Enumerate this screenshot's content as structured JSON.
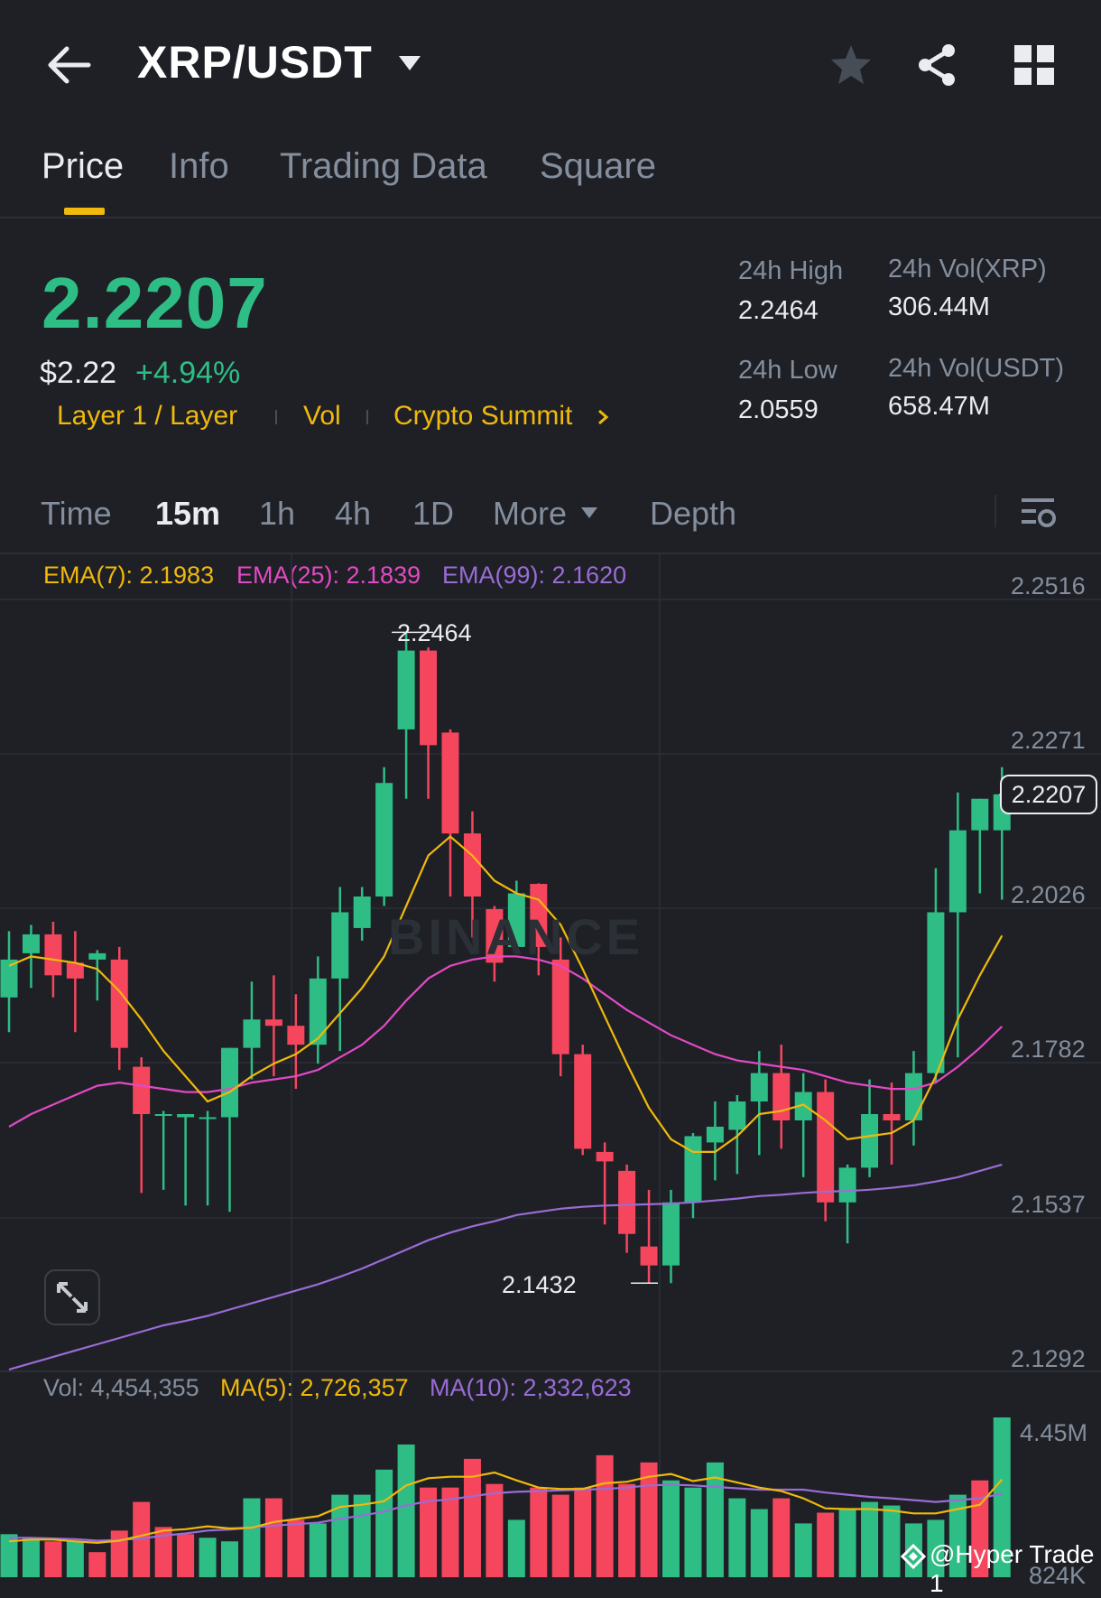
{
  "header": {
    "pair": "XRP/USDT",
    "icons": [
      "back-arrow-icon",
      "dropdown-caret-icon",
      "star-icon",
      "share-icon",
      "grid-icon"
    ]
  },
  "tabs": [
    {
      "label": "Price",
      "active": true
    },
    {
      "label": "Info"
    },
    {
      "label": "Trading Data"
    },
    {
      "label": "Square"
    }
  ],
  "ticker": {
    "last_price": "2.2207",
    "usd_price": "$2.22",
    "change": "+4.94%",
    "tags": {
      "t1": "Layer 1 / Layer",
      "t2": "Vol",
      "t3": "Crypto Summit"
    },
    "stats": {
      "high_label": "24h High",
      "high_value": "2.2464",
      "low_label": "24h Low",
      "low_value": "2.0559",
      "vol_xrp_label": "24h Vol(XRP)",
      "vol_xrp_value": "306.44M",
      "vol_usdt_label": "24h Vol(USDT)",
      "vol_usdt_value": "658.47M"
    }
  },
  "timeframes": {
    "time": "Time",
    "m15": "15m",
    "h1": "1h",
    "h4": "4h",
    "d1": "1D",
    "more": "More",
    "depth": "Depth",
    "active": "15m"
  },
  "indicators": {
    "ema7": "EMA(7): 2.1983",
    "ema25": "EMA(25): 2.1839",
    "ema99": "EMA(99): 2.1620",
    "vol": "Vol: 4,454,355",
    "ma5": "MA(5): 2,726,357",
    "ma10": "MA(10): 2,332,623"
  },
  "price_axis": {
    "p1": "2.2516",
    "p2": "2.2271",
    "p3": "2.2026",
    "p4": "2.1782",
    "p5": "2.1537",
    "p6": "2.1292",
    "current": "2.2207"
  },
  "vol_axis": {
    "top": "4.45M",
    "partial": "824K"
  },
  "markers": {
    "high": "2.2464",
    "low": "2.1432"
  },
  "watermark": "BINANCE",
  "credit": "@Hyper Trade 1",
  "colors": {
    "up": "#2ebd85",
    "down": "#f6465d",
    "ema7": "#f0b90b",
    "ema25": "#e349c4",
    "ema99": "#9a6cd6",
    "accent": "#f0b90b"
  },
  "chart_data": {
    "type": "candlestick",
    "interval": "15m",
    "ylim": [
      2.1292,
      2.2516
    ],
    "candles": [
      {
        "o": 2.1885,
        "h": 2.199,
        "l": 2.183,
        "c": 2.1945
      },
      {
        "o": 2.1955,
        "h": 2.2,
        "l": 2.19,
        "c": 2.1985
      },
      {
        "o": 2.1985,
        "h": 2.2005,
        "l": 2.1885,
        "c": 2.192
      },
      {
        "o": 2.194,
        "h": 2.199,
        "l": 2.183,
        "c": 2.1915
      },
      {
        "o": 2.1945,
        "h": 2.196,
        "l": 2.188,
        "c": 2.1955
      },
      {
        "o": 2.1945,
        "h": 2.1965,
        "l": 2.177,
        "c": 2.1805
      },
      {
        "o": 2.1775,
        "h": 2.179,
        "l": 2.1575,
        "c": 2.17
      },
      {
        "o": 2.17,
        "h": 2.1705,
        "l": 2.158,
        "c": 2.17
      },
      {
        "o": 2.1695,
        "h": 2.17,
        "l": 2.1555,
        "c": 2.17
      },
      {
        "o": 2.1695,
        "h": 2.1705,
        "l": 2.1555,
        "c": 2.1695
      },
      {
        "o": 2.1695,
        "h": 2.1805,
        "l": 2.1545,
        "c": 2.1805
      },
      {
        "o": 2.1805,
        "h": 2.191,
        "l": 2.1755,
        "c": 2.185
      },
      {
        "o": 2.185,
        "h": 2.192,
        "l": 2.176,
        "c": 2.184
      },
      {
        "o": 2.184,
        "h": 2.189,
        "l": 2.174,
        "c": 2.181
      },
      {
        "o": 2.181,
        "h": 2.195,
        "l": 2.178,
        "c": 2.1915
      },
      {
        "o": 2.1915,
        "h": 2.206,
        "l": 2.18,
        "c": 2.202
      },
      {
        "o": 2.1995,
        "h": 2.206,
        "l": 2.1975,
        "c": 2.2045
      },
      {
        "o": 2.2045,
        "h": 2.225,
        "l": 2.203,
        "c": 2.2225
      },
      {
        "o": 2.231,
        "h": 2.2464,
        "l": 2.22,
        "c": 2.2435
      },
      {
        "o": 2.2435,
        "h": 2.244,
        "l": 2.22,
        "c": 2.2285
      },
      {
        "o": 2.2305,
        "h": 2.231,
        "l": 2.2045,
        "c": 2.2145
      },
      {
        "o": 2.2145,
        "h": 2.218,
        "l": 2.198,
        "c": 2.2045
      },
      {
        "o": 2.2025,
        "h": 2.203,
        "l": 2.191,
        "c": 2.194
      },
      {
        "o": 2.1965,
        "h": 2.207,
        "l": 2.196,
        "c": 2.205
      },
      {
        "o": 2.2065,
        "h": 2.2066,
        "l": 2.192,
        "c": 2.1965
      },
      {
        "o": 2.1945,
        "h": 2.198,
        "l": 2.176,
        "c": 2.1795
      },
      {
        "o": 2.1795,
        "h": 2.181,
        "l": 2.1635,
        "c": 2.1645
      },
      {
        "o": 2.164,
        "h": 2.1655,
        "l": 2.1525,
        "c": 2.1625
      },
      {
        "o": 2.161,
        "h": 2.162,
        "l": 2.148,
        "c": 2.151
      },
      {
        "o": 2.149,
        "h": 2.158,
        "l": 2.1432,
        "c": 2.146
      },
      {
        "o": 2.146,
        "h": 2.158,
        "l": 2.1432,
        "c": 2.156
      },
      {
        "o": 2.156,
        "h": 2.167,
        "l": 2.1535,
        "c": 2.1665
      },
      {
        "o": 2.1655,
        "h": 2.172,
        "l": 2.1595,
        "c": 2.168
      },
      {
        "o": 2.1675,
        "h": 2.173,
        "l": 2.1605,
        "c": 2.172
      },
      {
        "o": 2.172,
        "h": 2.18,
        "l": 2.1635,
        "c": 2.1765
      },
      {
        "o": 2.1765,
        "h": 2.181,
        "l": 2.1645,
        "c": 2.169
      },
      {
        "o": 2.169,
        "h": 2.1765,
        "l": 2.16,
        "c": 2.1735
      },
      {
        "o": 2.1735,
        "h": 2.1755,
        "l": 2.153,
        "c": 2.156
      },
      {
        "o": 2.156,
        "h": 2.162,
        "l": 2.1495,
        "c": 2.1615
      },
      {
        "o": 2.1615,
        "h": 2.1755,
        "l": 2.16,
        "c": 2.17
      },
      {
        "o": 2.17,
        "h": 2.175,
        "l": 2.162,
        "c": 2.169
      },
      {
        "o": 2.169,
        "h": 2.18,
        "l": 2.165,
        "c": 2.1765
      },
      {
        "o": 2.1765,
        "h": 2.209,
        "l": 2.175,
        "c": 2.202
      },
      {
        "o": 2.202,
        "h": 2.221,
        "l": 2.179,
        "c": 2.215
      },
      {
        "o": 2.215,
        "h": 2.22,
        "l": 2.205,
        "c": 2.22
      },
      {
        "o": 2.215,
        "h": 2.225,
        "l": 2.204,
        "c": 2.2207
      }
    ],
    "ema7": [
      2.1935,
      2.195,
      2.1945,
      2.194,
      2.193,
      2.1895,
      2.185,
      2.18,
      2.176,
      2.172,
      2.1735,
      2.176,
      2.178,
      2.1795,
      2.182,
      2.186,
      2.19,
      2.195,
      2.203,
      2.211,
      2.214,
      2.211,
      2.207,
      2.205,
      2.204,
      2.2,
      2.193,
      2.1855,
      2.178,
      2.171,
      2.166,
      2.164,
      2.164,
      2.1665,
      2.17,
      2.1705,
      2.1715,
      2.169,
      2.166,
      2.1665,
      2.167,
      2.169,
      2.176,
      2.185,
      2.192,
      2.1983
    ],
    "ema25": [
      2.168,
      2.17,
      2.1715,
      2.173,
      2.1745,
      2.175,
      2.1745,
      2.174,
      2.1735,
      2.1735,
      2.174,
      2.175,
      2.1755,
      2.176,
      2.177,
      2.179,
      2.181,
      2.184,
      2.188,
      2.1915,
      2.1935,
      2.1945,
      2.195,
      2.195,
      2.1945,
      2.1935,
      2.1915,
      2.189,
      2.1865,
      2.1845,
      2.1825,
      2.181,
      2.1795,
      2.1785,
      2.178,
      2.1775,
      2.177,
      2.176,
      2.175,
      2.1745,
      2.174,
      2.174,
      2.175,
      2.1775,
      2.1805,
      2.1839
    ],
    "ema99": [
      2.1295,
      2.1305,
      2.1315,
      2.1325,
      2.1335,
      2.1345,
      2.1355,
      2.1365,
      2.1372,
      2.138,
      2.139,
      2.14,
      2.141,
      2.142,
      2.143,
      2.1442,
      2.1455,
      2.147,
      2.1485,
      2.15,
      2.1512,
      2.1522,
      2.153,
      2.154,
      2.1545,
      2.155,
      2.1553,
      2.1555,
      2.1556,
      2.1557,
      2.1558,
      2.156,
      2.1563,
      2.1566,
      2.157,
      2.1572,
      2.1575,
      2.1577,
      2.1578,
      2.158,
      2.1583,
      2.1587,
      2.1593,
      2.16,
      2.161,
      2.162
    ],
    "volume_ylim": [
      0,
      4454355
    ],
    "volumes": [
      1200000,
      1100000,
      1000000,
      1000000,
      700000,
      1300000,
      2100000,
      1400000,
      1200000,
      1100000,
      1000000,
      2200000,
      2200000,
      1600000,
      1500000,
      2300000,
      2300000,
      3000000,
      3700000,
      2500000,
      2500000,
      3300000,
      2600000,
      1600000,
      2500000,
      2300000,
      2500000,
      3400000,
      2600000,
      3200000,
      2700000,
      2500000,
      3200000,
      2200000,
      1900000,
      2200000,
      1500000,
      1800000,
      1900000,
      2100000,
      2000000,
      1500000,
      1600000,
      2300000,
      2700000,
      4454355
    ],
    "volume_up": [
      true,
      true,
      false,
      true,
      false,
      false,
      false,
      false,
      false,
      true,
      true,
      true,
      false,
      false,
      true,
      true,
      true,
      true,
      true,
      false,
      false,
      false,
      false,
      true,
      false,
      false,
      false,
      false,
      false,
      false,
      true,
      true,
      true,
      true,
      true,
      false,
      true,
      false,
      true,
      true,
      true,
      true,
      true,
      true,
      false,
      true
    ],
    "ma5": [
      1000000,
      1050000,
      1050000,
      1000000,
      960000,
      1020000,
      1160000,
      1300000,
      1340000,
      1420000,
      1360000,
      1380000,
      1540000,
      1620000,
      1700000,
      1960000,
      2020000,
      2120000,
      2560000,
      2760000,
      2800000,
      2800000,
      2920000,
      2700000,
      2500000,
      2460000,
      2460000,
      2620000,
      2660000,
      2800000,
      2880000,
      2680000,
      2780000,
      2640000,
      2500000,
      2400000,
      2200000,
      1920000,
      1900000,
      1900000,
      1860000,
      1780000,
      1780000,
      1900000,
      2020000,
      2726357
    ],
    "ma10": [
      1100000,
      1100000,
      1080000,
      1060000,
      1020000,
      1040000,
      1080000,
      1160000,
      1220000,
      1300000,
      1330000,
      1380000,
      1440000,
      1480000,
      1520000,
      1630000,
      1720000,
      1830000,
      2000000,
      2120000,
      2170000,
      2260000,
      2340000,
      2380000,
      2400000,
      2420000,
      2440000,
      2460000,
      2500000,
      2560000,
      2580000,
      2560000,
      2520000,
      2480000,
      2440000,
      2440000,
      2440000,
      2360000,
      2300000,
      2240000,
      2200000,
      2150000,
      2100000,
      2150000,
      2200000,
      2332623
    ]
  }
}
